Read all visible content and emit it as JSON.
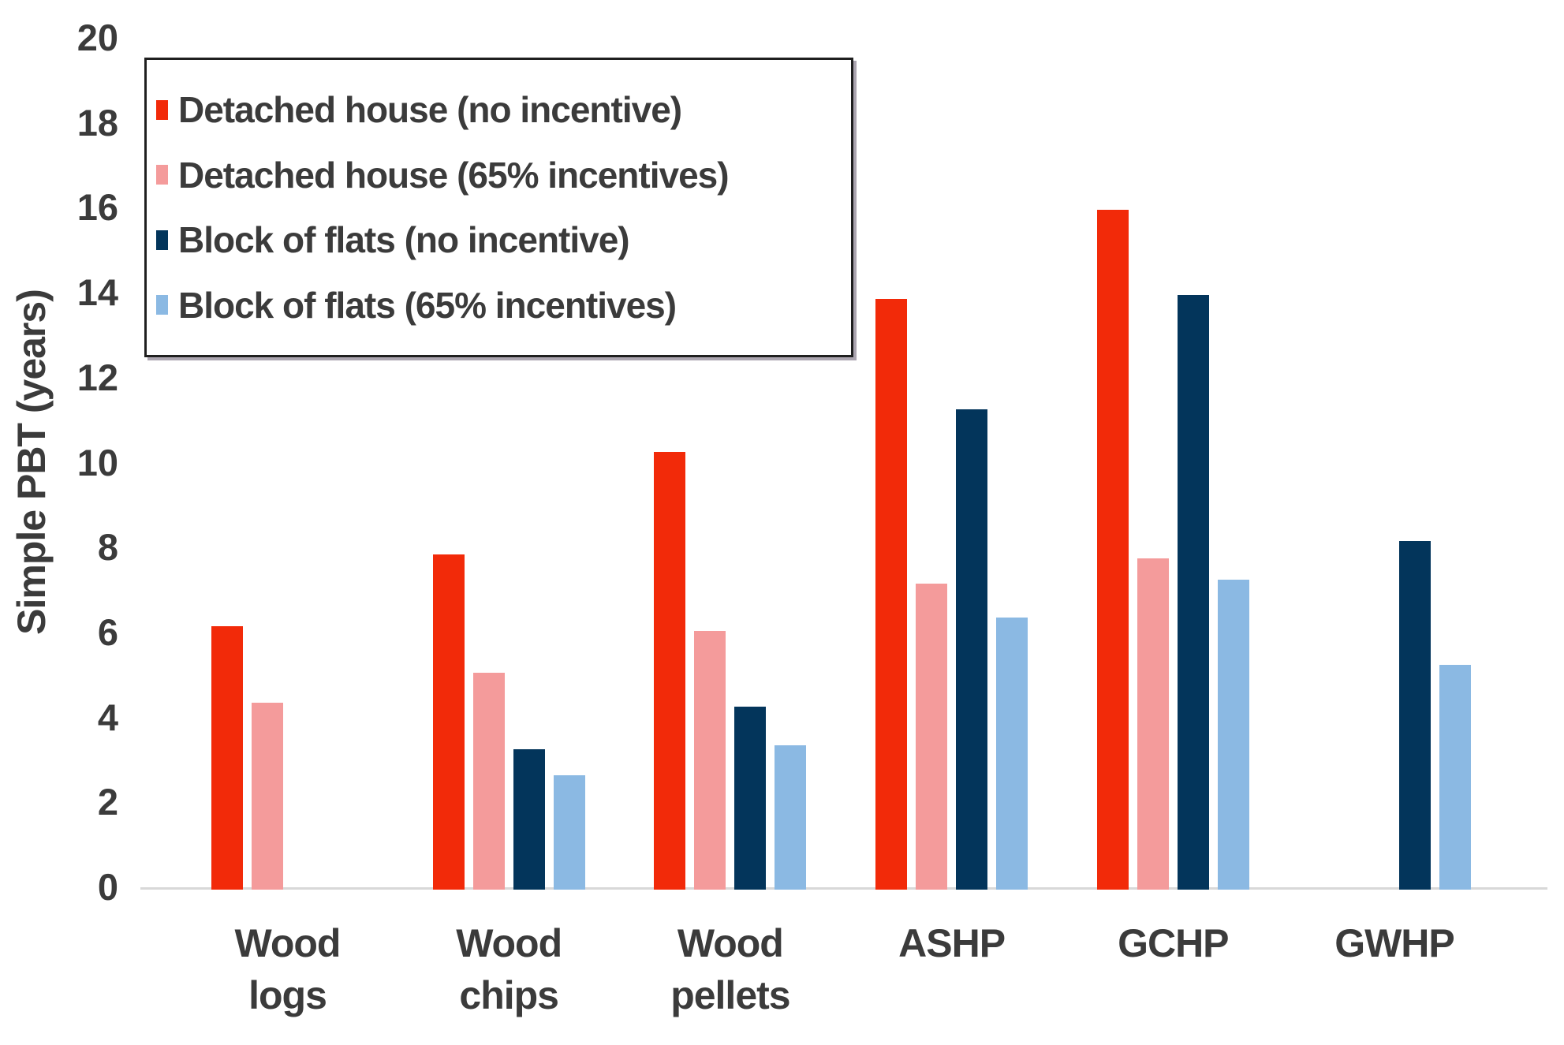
{
  "page": {
    "background": "#ffffff"
  },
  "chart_data": {
    "type": "bar",
    "title": "",
    "ylabel": "Simple PBT (years)",
    "xlabel": "",
    "ylim": [
      0,
      20
    ],
    "ytick_step": 2,
    "grid": false,
    "legend_position": "top-left",
    "categories": [
      "Wood logs",
      "Wood chips",
      "Wood pellets",
      "ASHP",
      "GCHP",
      "GWHP"
    ],
    "category_label_lines": [
      [
        "Wood",
        "logs"
      ],
      [
        "Wood",
        "chips"
      ],
      [
        "Wood",
        "pellets"
      ],
      [
        "ASHP"
      ],
      [
        "GCHP"
      ],
      [
        "GWHP"
      ]
    ],
    "series": [
      {
        "name": "Detached house (no incentive)",
        "color": "#F22A09",
        "values": [
          6.2,
          7.9,
          10.3,
          13.9,
          16.0,
          null
        ]
      },
      {
        "name": "Detached house (65% incentives)",
        "color": "#F49B9B",
        "values": [
          4.4,
          5.1,
          6.1,
          7.2,
          7.8,
          null
        ]
      },
      {
        "name": "Block of flats (no incentive)",
        "color": "#03355B",
        "values": [
          null,
          3.3,
          4.3,
          11.3,
          14.0,
          8.2
        ]
      },
      {
        "name": "Block of flats (65% incentives)",
        "color": "#8BB9E3",
        "values": [
          null,
          2.7,
          3.4,
          6.4,
          7.3,
          5.3
        ]
      }
    ],
    "axis_text_color": "#3B3B3B",
    "baseline_color": "#D8D8D8"
  }
}
